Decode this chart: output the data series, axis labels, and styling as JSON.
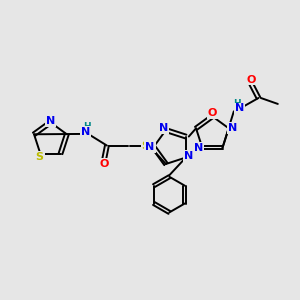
{
  "bg_color": "#e6e6e6",
  "atom_colors": {
    "N": "#0000ee",
    "O": "#ff0000",
    "S": "#bbbb00",
    "H": "#008888",
    "C": "#000000"
  },
  "lw": 1.4,
  "fs": 8.0,
  "fs_small": 6.5
}
